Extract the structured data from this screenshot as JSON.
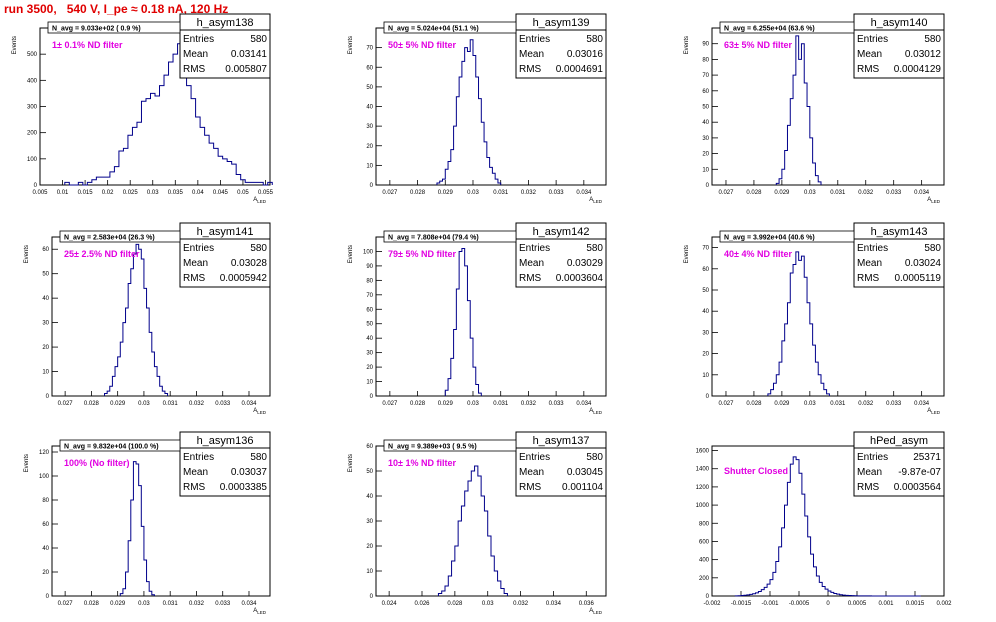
{
  "page": {
    "run_title": "run 3500,   540 V, I_pe ≈ 0.18 nA, 120 Hz"
  },
  "colors": {
    "histogram": "#00008b",
    "annotation": "#e100e1",
    "title": "#e00000",
    "frame": "#000000"
  },
  "chart_data": [
    {
      "type": "histogram",
      "name": "h_asym138",
      "ylabel": "Events",
      "xlabel": "A_LED",
      "navg": "N_avg = 9.033e+02 ( 0.9 %)",
      "note": "1± 0.1% ND filter",
      "stats": {
        "entries": "580",
        "mean": "0.03141",
        "rms": "0.005807"
      },
      "xlim": [
        0.005,
        0.056
      ],
      "ylim": [
        0,
        600
      ],
      "xticks": [
        "0.005",
        "0.01",
        "0.015",
        "0.02",
        "0.025",
        "0.03",
        "0.035",
        "0.04",
        "0.045",
        "0.05",
        "0.055"
      ],
      "yticks": [
        "0",
        "100",
        "200",
        "300",
        "400",
        "500"
      ],
      "bins": {
        "start": 0.0105,
        "width": 0.001,
        "counts": [
          10,
          0,
          0,
          10,
          0,
          10,
          20,
          30,
          30,
          30,
          50,
          70,
          130,
          140,
          190,
          220,
          240,
          320,
          330,
          350,
          340,
          380,
          420,
          470,
          500,
          540,
          460,
          380,
          330,
          260,
          220,
          190,
          160,
          140,
          110,
          100,
          90,
          80,
          40,
          20,
          10,
          10,
          10,
          10,
          0,
          10
        ]
      }
    },
    {
      "type": "histogram",
      "name": "h_asym139",
      "ylabel": "Events",
      "xlabel": "A_LED",
      "navg": "N_avg = 5.024e+04 (51.1 %)",
      "note": "50± 5% ND filter",
      "stats": {
        "entries": "580",
        "mean": "0.03016",
        "rms": "0.0004691"
      },
      "xlim": [
        0.0265,
        0.0348
      ],
      "ylim": [
        0,
        80
      ],
      "xticks": [
        "0.027",
        "0.028",
        "0.029",
        "0.03",
        "0.031",
        "0.032",
        "0.033",
        "0.034"
      ],
      "yticks": [
        "0",
        "10",
        "20",
        "30",
        "40",
        "50",
        "60",
        "70"
      ],
      "bins": {
        "start": 0.0287,
        "width": 0.0001,
        "counts": [
          1,
          2,
          3,
          8,
          12,
          18,
          30,
          45,
          55,
          63,
          70,
          68,
          74,
          66,
          55,
          44,
          32,
          22,
          14,
          9,
          6,
          3,
          1
        ]
      }
    },
    {
      "type": "histogram",
      "name": "h_asym140",
      "ylabel": "Events",
      "xlabel": "A_LED",
      "navg": "N_avg = 6.255e+04 (63.6 %)",
      "note": "63± 5% ND filter",
      "stats": {
        "entries": "580",
        "mean": "0.03012",
        "rms": "0.0004129"
      },
      "xlim": [
        0.0265,
        0.0348
      ],
      "ylim": [
        0,
        100
      ],
      "xticks": [
        "0.027",
        "0.028",
        "0.029",
        "0.03",
        "0.031",
        "0.032",
        "0.033",
        "0.034"
      ],
      "yticks": [
        "0",
        "10",
        "20",
        "30",
        "40",
        "50",
        "60",
        "70",
        "80",
        "90"
      ],
      "bins": {
        "start": 0.0288,
        "width": 0.0001,
        "counts": [
          1,
          4,
          10,
          22,
          38,
          55,
          70,
          95,
          80,
          90,
          65,
          50,
          30,
          14,
          6,
          2
        ]
      }
    },
    {
      "type": "histogram",
      "name": "h_asym141",
      "ylabel": "Events",
      "xlabel": "A_LED",
      "navg": "N_avg = 2.583e+04 (26.3 %)",
      "note": "25± 2.5% ND filter",
      "stats": {
        "entries": "580",
        "mean": "0.03028",
        "rms": "0.0005942"
      },
      "xlim": [
        0.0265,
        0.0348
      ],
      "ylim": [
        0,
        65
      ],
      "xticks": [
        "0.027",
        "0.028",
        "0.029",
        "0.03",
        "0.031",
        "0.032",
        "0.033",
        "0.034"
      ],
      "yticks": [
        "0",
        "10",
        "20",
        "30",
        "40",
        "50",
        "60"
      ],
      "bins": {
        "start": 0.0285,
        "width": 0.0001,
        "counts": [
          1,
          2,
          4,
          8,
          12,
          16,
          22,
          30,
          36,
          46,
          52,
          58,
          62,
          60,
          56,
          44,
          36,
          26,
          18,
          12,
          8,
          4,
          2,
          1
        ]
      }
    },
    {
      "type": "histogram",
      "name": "h_asym142",
      "ylabel": "Events",
      "xlabel": "A_LED",
      "navg": "N_avg = 7.808e+04 (79.4 %)",
      "note": "79± 5% ND filter",
      "stats": {
        "entries": "580",
        "mean": "0.03029",
        "rms": "0.0003604"
      },
      "xlim": [
        0.0265,
        0.0348
      ],
      "ylim": [
        0,
        110
      ],
      "xticks": [
        "0.027",
        "0.028",
        "0.029",
        "0.03",
        "0.031",
        "0.032",
        "0.033",
        "0.034"
      ],
      "yticks": [
        "0",
        "10",
        "20",
        "30",
        "40",
        "50",
        "60",
        "70",
        "80",
        "90",
        "100"
      ],
      "bins": {
        "start": 0.029,
        "width": 0.0001,
        "counts": [
          4,
          12,
          26,
          46,
          74,
          100,
          102,
          90,
          66,
          40,
          20,
          8,
          2
        ]
      }
    },
    {
      "type": "histogram",
      "name": "h_asym143",
      "ylabel": "Events",
      "xlabel": "A_LED",
      "navg": "N_avg = 3.992e+04 (40.6 %)",
      "note": "40± 4% ND filter",
      "stats": {
        "entries": "580",
        "mean": "0.03024",
        "rms": "0.0005119"
      },
      "xlim": [
        0.0265,
        0.0348
      ],
      "ylim": [
        0,
        75
      ],
      "xticks": [
        "0.027",
        "0.028",
        "0.029",
        "0.03",
        "0.031",
        "0.032",
        "0.033",
        "0.034"
      ],
      "yticks": [
        "0",
        "10",
        "20",
        "30",
        "40",
        "50",
        "60",
        "70"
      ],
      "bins": {
        "start": 0.0285,
        "width": 0.0001,
        "counts": [
          1,
          3,
          6,
          10,
          16,
          26,
          34,
          44,
          58,
          62,
          68,
          64,
          66,
          56,
          44,
          34,
          24,
          16,
          10,
          6,
          3,
          1
        ]
      }
    },
    {
      "type": "histogram",
      "name": "h_asym136",
      "ylabel": "Events",
      "xlabel": "A_LED",
      "navg": "N_avg = 9.832e+04 (100.0 %)",
      "note": "100% (No filter)",
      "stats": {
        "entries": "580",
        "mean": "0.03037",
        "rms": "0.0003385"
      },
      "xlim": [
        0.0265,
        0.0348
      ],
      "ylim": [
        0,
        125
      ],
      "xticks": [
        "0.027",
        "0.028",
        "0.029",
        "0.03",
        "0.031",
        "0.032",
        "0.033",
        "0.034"
      ],
      "yticks": [
        "0",
        "20",
        "40",
        "60",
        "80",
        "100",
        "120"
      ],
      "bins": {
        "start": 0.0291,
        "width": 0.0001,
        "counts": [
          2,
          6,
          20,
          46,
          80,
          112,
          110,
          92,
          58,
          30,
          12,
          4,
          1
        ]
      }
    },
    {
      "type": "histogram",
      "name": "h_asym137",
      "ylabel": "Events",
      "xlabel": "A_LED",
      "navg": "N_avg = 9.389e+03 ( 9.5 %)",
      "note": "10± 1% ND filter",
      "stats": {
        "entries": "580",
        "mean": "0.03045",
        "rms": "0.001104"
      },
      "xlim": [
        0.0232,
        0.0372
      ],
      "ylim": [
        0,
        60
      ],
      "xticks": [
        "0.024",
        "0.026",
        "0.028",
        "0.03",
        "0.032",
        "0.034",
        "0.036"
      ],
      "yticks": [
        "0",
        "10",
        "20",
        "30",
        "40",
        "50",
        "60"
      ],
      "bins": {
        "start": 0.027,
        "width": 0.0002,
        "counts": [
          1,
          2,
          4,
          8,
          14,
          20,
          30,
          36,
          42,
          46,
          50,
          52,
          48,
          40,
          34,
          24,
          16,
          10,
          6,
          3,
          1
        ]
      }
    },
    {
      "type": "histogram",
      "name": "hPed_asym",
      "ylabel": "",
      "xlabel": "",
      "navg": "",
      "note": "Shutter Closed",
      "stats": {
        "entries": "25371",
        "mean": "-9.87e-07",
        "rms": "0.0003564"
      },
      "xlim": [
        -0.002,
        0.002
      ],
      "ylim": [
        0,
        1650
      ],
      "xticks": [
        "-0.002",
        "-0.0015",
        "-0.001",
        "-0.0005",
        "0",
        "0.0005",
        "0.001",
        "0.0015",
        "0.002"
      ],
      "yticks": [
        "0",
        "200",
        "400",
        "600",
        "800",
        "1000",
        "1200",
        "1400",
        "1600"
      ],
      "bins": {
        "start": -0.0016,
        "width": 5e-05,
        "counts": [
          2,
          3,
          5,
          8,
          12,
          18,
          25,
          35,
          50,
          70,
          95,
          130,
          180,
          260,
          380,
          540,
          750,
          1000,
          1250,
          1450,
          1530,
          1500,
          1350,
          1120,
          880,
          650,
          460,
          320,
          220,
          150,
          105,
          75,
          55,
          40,
          28,
          20,
          14,
          10,
          7,
          5,
          4,
          3,
          2,
          2,
          1,
          1,
          1,
          0,
          0,
          0,
          0,
          0,
          0,
          0,
          0,
          0,
          0,
          0,
          0,
          0,
          0,
          0,
          0,
          0
        ]
      }
    }
  ]
}
